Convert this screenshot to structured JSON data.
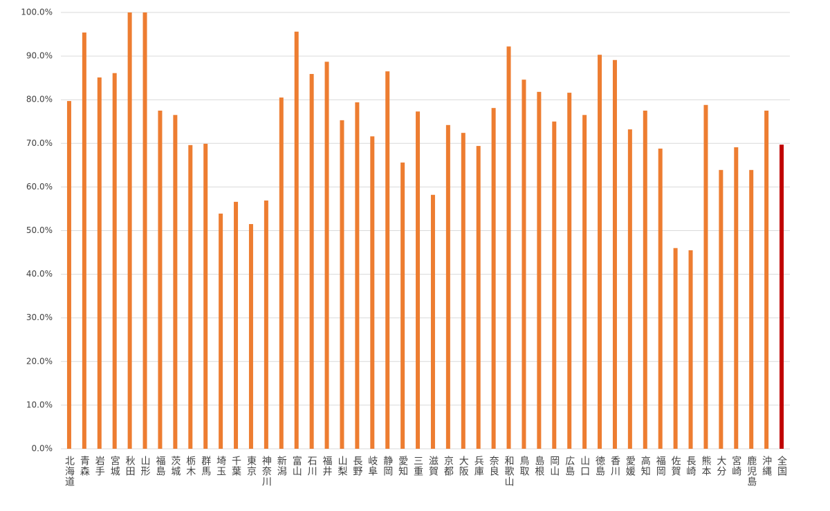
{
  "chart_data": {
    "type": "bar",
    "categories": [
      "北海道",
      "青森",
      "岩手",
      "宮城",
      "秋田",
      "山形",
      "福島",
      "茨城",
      "栃木",
      "群馬",
      "埼玉",
      "千葉",
      "東京",
      "神奈川",
      "新潟",
      "富山",
      "石川",
      "福井",
      "山梨",
      "長野",
      "岐阜",
      "静岡",
      "愛知",
      "三重",
      "滋賀",
      "京都",
      "大阪",
      "兵庫",
      "奈良",
      "和歌山",
      "鳥取",
      "島根",
      "岡山",
      "広島",
      "山口",
      "徳島",
      "香川",
      "愛媛",
      "高知",
      "福岡",
      "佐賀",
      "長崎",
      "熊本",
      "大分",
      "宮崎",
      "鹿児島",
      "沖縄",
      "全国"
    ],
    "values": [
      79.7,
      95.4,
      85.1,
      86.1,
      100,
      100,
      77.5,
      76.5,
      69.6,
      69.9,
      53.9,
      56.6,
      51.5,
      56.9,
      80.5,
      95.6,
      85.9,
      88.7,
      75.3,
      79.4,
      71.6,
      86.5,
      65.6,
      77.3,
      58.2,
      74.2,
      72.4,
      69.4,
      78.1,
      92.2,
      84.6,
      81.8,
      75.0,
      81.6,
      76.5,
      90.3,
      89.1,
      73.2,
      77.5,
      68.8,
      46.0,
      45.5,
      78.8,
      63.9,
      69.1,
      63.9,
      77.5,
      69.7
    ],
    "colors": [
      "#ed7d31",
      "#ed7d31",
      "#ed7d31",
      "#ed7d31",
      "#ed7d31",
      "#ed7d31",
      "#ed7d31",
      "#ed7d31",
      "#ed7d31",
      "#ed7d31",
      "#ed7d31",
      "#ed7d31",
      "#ed7d31",
      "#ed7d31",
      "#ed7d31",
      "#ed7d31",
      "#ed7d31",
      "#ed7d31",
      "#ed7d31",
      "#ed7d31",
      "#ed7d31",
      "#ed7d31",
      "#ed7d31",
      "#ed7d31",
      "#ed7d31",
      "#ed7d31",
      "#ed7d31",
      "#ed7d31",
      "#ed7d31",
      "#ed7d31",
      "#ed7d31",
      "#ed7d31",
      "#ed7d31",
      "#ed7d31",
      "#ed7d31",
      "#ed7d31",
      "#ed7d31",
      "#ed7d31",
      "#ed7d31",
      "#ed7d31",
      "#ed7d31",
      "#ed7d31",
      "#ed7d31",
      "#ed7d31",
      "#ed7d31",
      "#ed7d31",
      "#ed7d31",
      "#c00000"
    ],
    "ylim": [
      0,
      100
    ],
    "yticks": [
      {
        "value": 0,
        "label": "0.0%"
      },
      {
        "value": 10,
        "label": "10.0%"
      },
      {
        "value": 20,
        "label": "20.0%"
      },
      {
        "value": 30,
        "label": "30.0%"
      },
      {
        "value": 40,
        "label": "40.0%"
      },
      {
        "value": 50,
        "label": "50.0%"
      },
      {
        "value": 60,
        "label": "60.0%"
      },
      {
        "value": 70,
        "label": "70.0%"
      },
      {
        "value": 80,
        "label": "80.0%"
      },
      {
        "value": 90,
        "label": "90.0%"
      },
      {
        "value": 100,
        "label": "100.0%"
      }
    ],
    "grid": true
  }
}
